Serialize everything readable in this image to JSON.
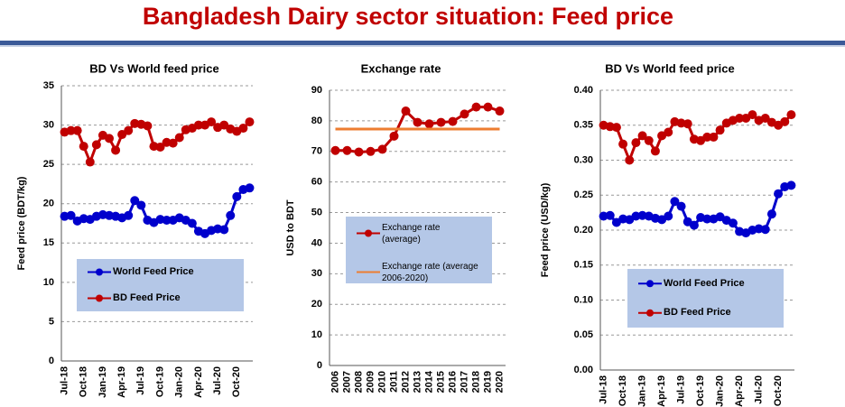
{
  "title": "Bangladesh Dairy sector situation: Feed price",
  "chart_data": [
    {
      "type": "line",
      "title": "BD Vs World feed price",
      "ylabel": "Feed price (BDT/kg)",
      "categories": [
        "Jul-18",
        null,
        null,
        "Oct-18",
        null,
        null,
        "Jan-19",
        null,
        null,
        "Apr-19",
        null,
        null,
        "Jul-19",
        null,
        null,
        "Oct-19",
        null,
        null,
        "Jan-20",
        null,
        null,
        "Apr-20",
        null,
        null,
        "Jul-20",
        null,
        null,
        "Oct-20",
        null,
        null
      ],
      "series": [
        {
          "name": "World Feed Price",
          "color": "#0000cc",
          "values": [
            18.4,
            18.5,
            17.8,
            18.1,
            18.0,
            18.4,
            18.6,
            18.5,
            18.4,
            18.2,
            18.5,
            20.4,
            19.8,
            17.9,
            17.6,
            18.0,
            17.9,
            17.9,
            18.2,
            17.9,
            17.5,
            16.5,
            16.2,
            16.6,
            16.8,
            16.7,
            18.5,
            20.9,
            21.8,
            22.0
          ]
        },
        {
          "name": "BD Feed Price",
          "color": "#c00000",
          "values": [
            29.1,
            29.3,
            29.3,
            27.3,
            25.3,
            27.5,
            28.7,
            28.3,
            26.8,
            28.8,
            29.3,
            30.2,
            30.1,
            29.9,
            27.3,
            27.2,
            27.8,
            27.7,
            28.4,
            29.4,
            29.6,
            30.0,
            30.0,
            30.4,
            29.7,
            30.0,
            29.5,
            29.2,
            29.6,
            30.4
          ]
        }
      ],
      "ylim": [
        0,
        35
      ],
      "yticks": [
        0,
        5,
        10,
        15,
        20,
        25,
        30,
        35
      ],
      "grid": true
    },
    {
      "type": "line",
      "title": "Exchange rate",
      "ylabel": "USD to BDT",
      "categories": [
        "2006",
        "2007",
        "2008",
        "2009",
        "2010",
        "2011",
        "2012",
        "2013",
        "2014",
        "2015",
        "2016",
        "2017",
        "2018",
        "2019",
        "2020"
      ],
      "series": [
        {
          "name": "Exchange rate (average)",
          "color": "#c00000",
          "marker": true,
          "values": [
            70.3,
            70.3,
            69.8,
            70.0,
            70.7,
            75.0,
            83.2,
            79.5,
            79.0,
            79.5,
            79.8,
            82.2,
            84.5,
            84.5,
            83.2
          ]
        },
        {
          "name": "Exchange rate (average 2006-2020)",
          "color": "#ed7d31",
          "marker": false,
          "values": [
            77.3,
            77.3,
            77.3,
            77.3,
            77.3,
            77.3,
            77.3,
            77.3,
            77.3,
            77.3,
            77.3,
            77.3,
            77.3,
            77.3,
            77.3
          ]
        }
      ],
      "ylim": [
        0,
        90
      ],
      "yticks": [
        0,
        10,
        20,
        30,
        40,
        50,
        60,
        70,
        80,
        90
      ],
      "grid": true
    },
    {
      "type": "line",
      "title": "BD Vs World feed price",
      "ylabel": "Feed price (USD/kg)",
      "categories": [
        "Jul-18",
        null,
        null,
        "Oct-18",
        null,
        null,
        "Jan-19",
        null,
        null,
        "Apr-19",
        null,
        null,
        "Jul-19",
        null,
        null,
        "Oct-19",
        null,
        null,
        "Jan-20",
        null,
        null,
        "Apr-20",
        null,
        null,
        "Jul-20",
        null,
        null,
        "Oct-20",
        null,
        null
      ],
      "series": [
        {
          "name": "World Feed Price",
          "color": "#0000cc",
          "values": [
            0.22,
            0.221,
            0.211,
            0.216,
            0.215,
            0.22,
            0.221,
            0.22,
            0.217,
            0.215,
            0.22,
            0.241,
            0.234,
            0.212,
            0.207,
            0.218,
            0.216,
            0.216,
            0.219,
            0.214,
            0.21,
            0.198,
            0.196,
            0.2,
            0.202,
            0.201,
            0.223,
            0.252,
            0.262,
            0.264
          ]
        },
        {
          "name": "BD Feed Price",
          "color": "#c00000",
          "values": [
            0.35,
            0.348,
            0.347,
            0.323,
            0.3,
            0.325,
            0.335,
            0.328,
            0.313,
            0.335,
            0.34,
            0.355,
            0.353,
            0.352,
            0.33,
            0.328,
            0.333,
            0.333,
            0.343,
            0.353,
            0.357,
            0.36,
            0.36,
            0.365,
            0.357,
            0.36,
            0.354,
            0.35,
            0.355,
            0.365
          ]
        }
      ],
      "ylim": [
        0,
        0.4
      ],
      "yticks": [
        {
          "value": 0,
          "label": "0.00"
        },
        0.05,
        {
          "value": 0.1,
          "label": "0.10"
        },
        0.15,
        {
          "value": 0.2,
          "label": "0.20"
        },
        0.25,
        {
          "value": 0.3,
          "label": "0.30"
        },
        0.35,
        {
          "value": 0.4,
          "label": "0.40"
        }
      ],
      "grid": true
    }
  ]
}
